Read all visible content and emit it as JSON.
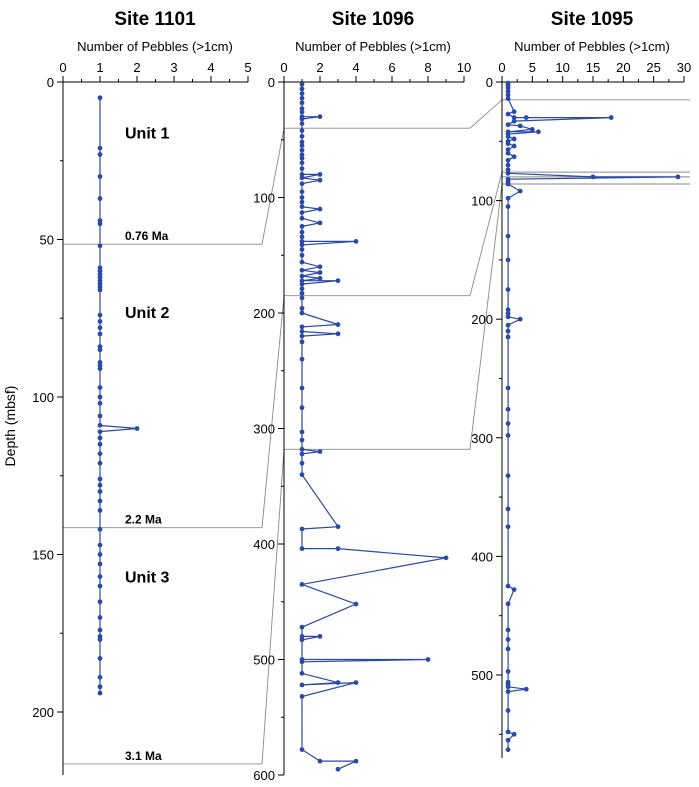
{
  "figure": {
    "ylabel": "Depth (mbsf)"
  },
  "colors": {
    "series": "#2b4aa8",
    "axis": "#000000",
    "correlation": "#8a8a8a"
  },
  "chart_data": [
    {
      "type": "line",
      "title": "Site 1101",
      "xlabel": "Number of Pebbles  (>1cm)",
      "xlim": [
        0,
        5
      ],
      "xticks": [
        0,
        1,
        2,
        3,
        4,
        5
      ],
      "ylim": [
        0,
        220
      ],
      "yticks": [
        0,
        50,
        100,
        150,
        200
      ],
      "ylabel": "Depth (mbsf)",
      "points": [
        [
          1,
          5
        ],
        [
          1,
          21
        ],
        [
          1,
          23
        ],
        [
          1,
          30
        ],
        [
          1,
          37
        ],
        [
          1,
          44
        ],
        [
          1,
          45
        ],
        [
          1,
          52
        ],
        [
          1,
          59
        ],
        [
          1,
          60
        ],
        [
          1,
          61
        ],
        [
          1,
          62
        ],
        [
          1,
          63
        ],
        [
          1,
          64
        ],
        [
          1,
          65
        ],
        [
          1,
          66
        ],
        [
          1,
          74
        ],
        [
          1,
          76
        ],
        [
          1,
          78
        ],
        [
          1,
          80
        ],
        [
          1,
          84
        ],
        [
          1,
          85
        ],
        [
          1,
          89
        ],
        [
          1,
          90
        ],
        [
          1,
          91
        ],
        [
          1,
          97
        ],
        [
          1,
          100
        ],
        [
          1,
          102
        ],
        [
          1,
          106
        ],
        [
          1,
          109
        ],
        [
          2,
          110
        ],
        [
          1,
          111
        ],
        [
          1,
          113
        ],
        [
          1,
          115
        ],
        [
          1,
          118
        ],
        [
          1,
          121
        ],
        [
          1,
          126
        ],
        [
          1,
          128
        ],
        [
          1,
          130
        ],
        [
          1,
          133
        ],
        [
          1,
          136
        ],
        [
          1,
          142
        ],
        [
          1,
          147
        ],
        [
          1,
          150
        ],
        [
          1,
          153
        ],
        [
          1,
          157
        ],
        [
          1,
          160
        ],
        [
          1,
          165
        ],
        [
          1,
          170
        ],
        [
          1,
          174
        ],
        [
          1,
          176
        ],
        [
          1,
          177
        ],
        [
          1,
          183
        ],
        [
          1,
          189
        ],
        [
          1,
          192
        ],
        [
          1,
          194
        ]
      ],
      "units": [
        {
          "label": "Unit 1",
          "depth": 16
        },
        {
          "label": "Unit 2",
          "depth": 73
        },
        {
          "label": "Unit 3",
          "depth": 157
        }
      ],
      "ages": [
        {
          "label": "0.76 Ma",
          "depth": 51.5
        },
        {
          "label": "2.2 Ma",
          "depth": 141.5
        },
        {
          "label": "3.1 Ma",
          "depth": 216.5
        }
      ]
    },
    {
      "type": "line",
      "title": "Site 1096",
      "xlabel": "Number of Pebbles  (>1cm)",
      "xlim": [
        0,
        10
      ],
      "xticks": [
        0,
        2,
        4,
        6,
        8,
        10
      ],
      "ylim": [
        0,
        600
      ],
      "yticks": [
        0,
        100,
        200,
        300,
        400,
        500,
        600
      ],
      "points": [
        [
          1,
          2
        ],
        [
          1,
          6
        ],
        [
          1,
          10
        ],
        [
          1,
          14
        ],
        [
          1,
          18
        ],
        [
          1,
          23
        ],
        [
          1,
          26
        ],
        [
          1,
          30
        ],
        [
          2,
          30
        ],
        [
          1,
          32
        ],
        [
          1,
          36
        ],
        [
          1,
          42
        ],
        [
          1,
          47
        ],
        [
          1,
          52
        ],
        [
          1,
          55
        ],
        [
          1,
          59
        ],
        [
          1,
          63
        ],
        [
          1,
          66
        ],
        [
          1,
          70
        ],
        [
          1,
          75
        ],
        [
          1,
          80
        ],
        [
          2,
          80
        ],
        [
          1,
          83
        ],
        [
          2,
          85
        ],
        [
          1,
          88
        ],
        [
          1,
          95
        ],
        [
          1,
          100
        ],
        [
          1,
          104
        ],
        [
          1,
          108
        ],
        [
          2,
          110
        ],
        [
          1,
          113
        ],
        [
          1,
          118
        ],
        [
          2,
          122
        ],
        [
          1,
          125
        ],
        [
          1,
          130
        ],
        [
          1,
          134
        ],
        [
          1,
          138
        ],
        [
          4,
          138
        ],
        [
          1,
          141
        ],
        [
          1,
          145
        ],
        [
          1,
          150
        ],
        [
          1,
          156
        ],
        [
          2,
          160
        ],
        [
          1,
          163
        ],
        [
          2,
          165
        ],
        [
          1,
          168
        ],
        [
          2,
          170
        ],
        [
          1,
          172
        ],
        [
          3,
          172
        ],
        [
          1,
          175
        ],
        [
          1,
          179
        ],
        [
          1,
          183
        ],
        [
          1,
          187
        ],
        [
          1,
          196
        ],
        [
          1,
          200
        ],
        [
          3,
          210
        ],
        [
          1,
          212
        ],
        [
          1,
          216
        ],
        [
          3,
          218
        ],
        [
          1,
          220
        ],
        [
          1,
          225
        ],
        [
          1,
          240
        ],
        [
          1,
          265
        ],
        [
          1,
          282
        ],
        [
          1,
          303
        ],
        [
          1,
          310
        ],
        [
          1,
          318
        ],
        [
          2,
          320
        ],
        [
          1,
          322
        ],
        [
          1,
          330
        ],
        [
          1,
          340
        ],
        [
          3,
          385
        ],
        [
          1,
          387
        ],
        [
          1,
          404
        ],
        [
          3,
          404
        ],
        [
          9,
          412
        ],
        [
          1,
          435
        ],
        [
          4,
          452
        ],
        [
          1,
          472
        ],
        [
          1,
          480
        ],
        [
          2,
          480
        ],
        [
          1,
          483
        ],
        [
          1,
          500
        ],
        [
          8,
          500
        ],
        [
          1,
          502
        ],
        [
          1,
          512
        ],
        [
          3,
          520
        ],
        [
          1,
          522
        ],
        [
          4,
          520
        ],
        [
          1,
          532
        ],
        [
          1,
          578
        ],
        [
          2,
          588
        ],
        [
          4,
          588
        ],
        [
          3,
          595
        ]
      ]
    },
    {
      "type": "line",
      "title": "Site 1095",
      "xlabel": "Number of Pebbles  (>1cm)",
      "xlim": [
        0,
        30
      ],
      "xticks": [
        0,
        5,
        10,
        15,
        20,
        25,
        30
      ],
      "ylim": [
        0,
        570
      ],
      "yticks": [
        0,
        100,
        200,
        300,
        400,
        500
      ],
      "points": [
        [
          1,
          1
        ],
        [
          1,
          3
        ],
        [
          1,
          5
        ],
        [
          1,
          8
        ],
        [
          1,
          11
        ],
        [
          1,
          14
        ],
        [
          2,
          25
        ],
        [
          1,
          27
        ],
        [
          2,
          30
        ],
        [
          4,
          30
        ],
        [
          18,
          30
        ],
        [
          2,
          33
        ],
        [
          1,
          36
        ],
        [
          3,
          37
        ],
        [
          5,
          40
        ],
        [
          1,
          42
        ],
        [
          6,
          42
        ],
        [
          1,
          44
        ],
        [
          1,
          46
        ],
        [
          2,
          48
        ],
        [
          1,
          50
        ],
        [
          1,
          52
        ],
        [
          2,
          54
        ],
        [
          1,
          57
        ],
        [
          1,
          60
        ],
        [
          2,
          63
        ],
        [
          1,
          66
        ],
        [
          1,
          70
        ],
        [
          1,
          74
        ],
        [
          1,
          77
        ],
        [
          15,
          80
        ],
        [
          29,
          80
        ],
        [
          1,
          82
        ],
        [
          1,
          84
        ],
        [
          1,
          86
        ],
        [
          3,
          92
        ],
        [
          1,
          98
        ],
        [
          1,
          105
        ],
        [
          1,
          130
        ],
        [
          1,
          150
        ],
        [
          1,
          175
        ],
        [
          1,
          192
        ],
        [
          1,
          195
        ],
        [
          1,
          198
        ],
        [
          3,
          200
        ],
        [
          1,
          205
        ],
        [
          1,
          210
        ],
        [
          1,
          215
        ],
        [
          1,
          258
        ],
        [
          1,
          276
        ],
        [
          1,
          288
        ],
        [
          1,
          298
        ],
        [
          1,
          332
        ],
        [
          1,
          360
        ],
        [
          1,
          375
        ],
        [
          1,
          425
        ],
        [
          2,
          428
        ],
        [
          1,
          440
        ],
        [
          1,
          462
        ],
        [
          1,
          470
        ],
        [
          1,
          478
        ],
        [
          1,
          497
        ],
        [
          1,
          506
        ],
        [
          1,
          508
        ],
        [
          1,
          510
        ],
        [
          4,
          512
        ],
        [
          1,
          514
        ],
        [
          1,
          530
        ],
        [
          1,
          548
        ],
        [
          2,
          550
        ],
        [
          1,
          555
        ],
        [
          1,
          563
        ]
      ]
    }
  ],
  "correlations": [
    [
      [
        0,
        51.5
      ],
      [
        1,
        40
      ]
    ],
    [
      [
        1,
        40
      ],
      [
        2,
        15
      ]
    ],
    [
      [
        0,
        141.5
      ],
      [
        1,
        185
      ]
    ],
    [
      [
        1,
        185
      ],
      [
        2,
        76
      ]
    ],
    [
      [
        0,
        216.5
      ],
      [
        1,
        318
      ]
    ],
    [
      [
        1,
        318
      ],
      [
        2,
        86
      ]
    ],
    [
      [
        2,
        80
      ],
      null
    ]
  ]
}
